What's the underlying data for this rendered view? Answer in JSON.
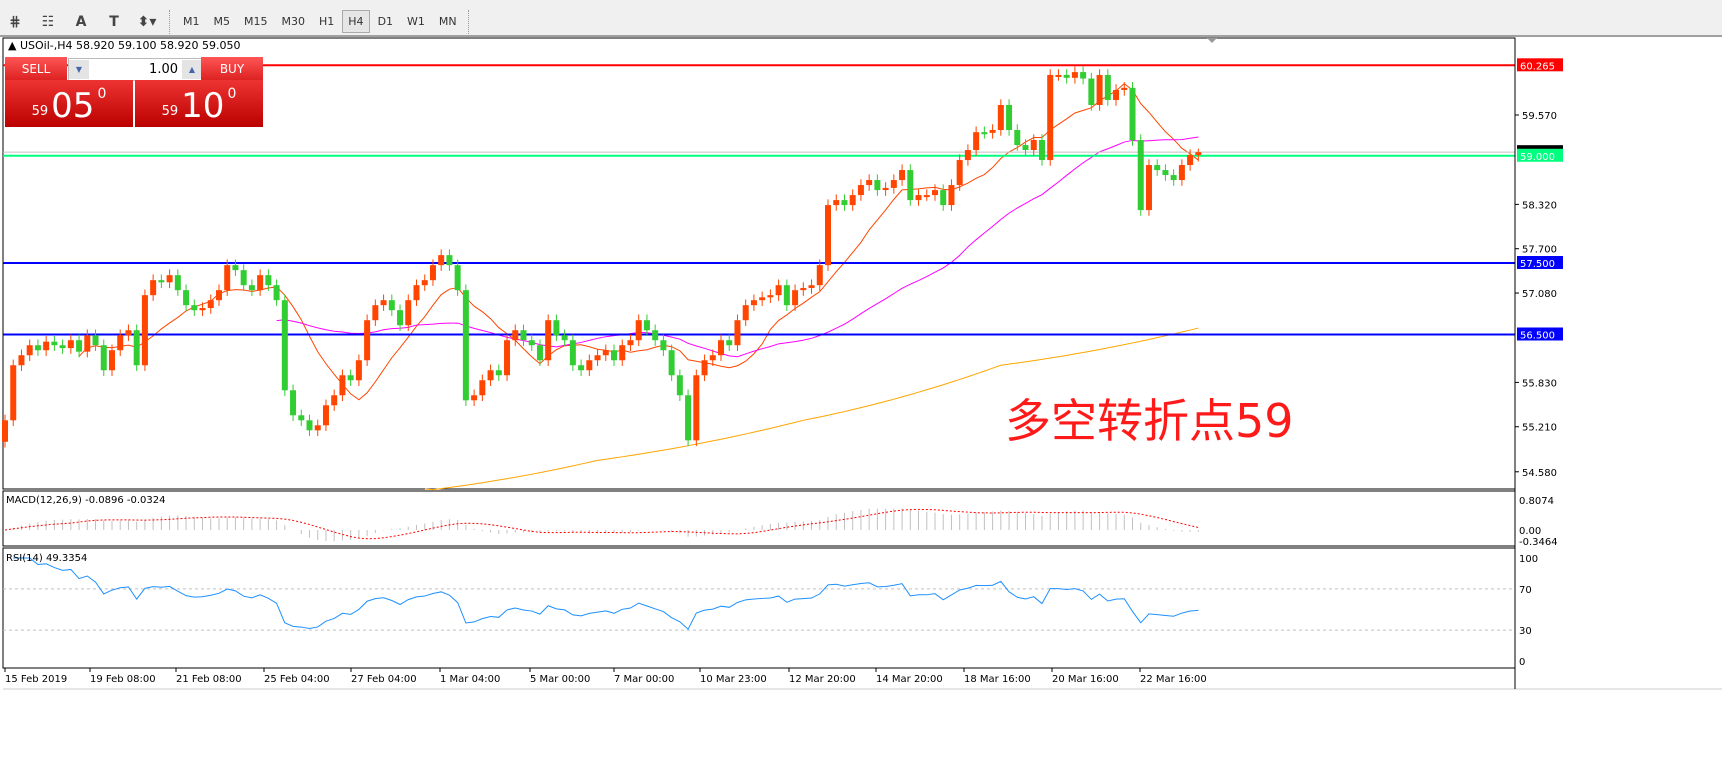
{
  "toolbar": {
    "icons": [
      "fibonacci-expansion-icon",
      "fibonacci-fan-icon",
      "text-icon",
      "text-label-icon",
      "arrows-icon"
    ],
    "icon_glyphs": [
      "⋕",
      "☷",
      "A",
      "T",
      "⬍▾"
    ],
    "timeframes": [
      "M1",
      "M5",
      "M15",
      "M30",
      "H1",
      "H4",
      "D1",
      "W1",
      "MN"
    ],
    "active_timeframe": "H4"
  },
  "chart": {
    "symbol_line": "USOil-,H4  58.920 59.100 58.920 59.050",
    "trade_panel": {
      "sell_label": "SELL",
      "buy_label": "BUY",
      "volume": "1.00",
      "sell_price": {
        "prefix": "59",
        "main": "05",
        "sup": "0"
      },
      "buy_price": {
        "prefix": "59",
        "main": "10",
        "sup": "0"
      }
    },
    "annotation": "多空转折点59",
    "colors": {
      "bull": "#ff4500",
      "bear": "#32cd32",
      "ma_fast": "#ff4500",
      "ma_mid": "#ff00ff",
      "ma_slow": "#ffa500",
      "rsi": "#1e90ff",
      "macd_signal": "#ff0000"
    },
    "macd_label": "MACD(12,26,9) -0.0896 -0.0324",
    "rsi_label": "RSI(14) 49.3354"
  },
  "chart_data": {
    "type": "candlestick",
    "symbol": "USOil-",
    "timeframe": "H4",
    "last_bar": {
      "open": 58.92,
      "high": 59.1,
      "low": 58.92,
      "close": 59.05
    },
    "close": [
      55.3,
      56.07,
      56.21,
      56.35,
      56.28,
      56.4,
      56.35,
      56.31,
      56.42,
      56.26,
      56.49,
      56.35,
      56.0,
      56.28,
      56.49,
      56.56,
      56.07,
      57.05,
      57.26,
      57.23,
      57.33,
      57.12,
      56.91,
      56.84,
      56.87,
      56.98,
      57.12,
      57.47,
      57.4,
      57.19,
      57.12,
      57.33,
      57.19,
      56.98,
      55.72,
      55.37,
      55.3,
      55.16,
      55.23,
      55.51,
      55.65,
      55.93,
      55.86,
      56.14,
      56.7,
      56.91,
      56.98,
      56.84,
      56.63,
      56.98,
      57.19,
      57.26,
      57.47,
      57.61,
      57.47,
      57.12,
      55.58,
      55.65,
      55.86,
      56.0,
      55.93,
      56.42,
      56.56,
      56.42,
      56.35,
      56.14,
      56.7,
      56.49,
      56.42,
      56.07,
      56.0,
      56.14,
      56.21,
      56.28,
      56.14,
      56.35,
      56.42,
      56.7,
      56.56,
      56.42,
      56.28,
      55.93,
      55.65,
      55.02,
      55.93,
      56.14,
      56.21,
      56.42,
      56.35,
      56.7,
      56.91,
      56.98,
      57.02,
      57.05,
      57.19,
      56.91,
      57.12,
      57.15,
      57.19,
      57.47,
      58.31,
      58.38,
      58.31,
      58.45,
      58.59,
      58.66,
      58.52,
      58.55,
      58.66,
      58.8,
      58.38,
      58.45,
      58.45,
      58.52,
      58.31,
      58.59,
      58.94,
      59.08,
      59.33,
      59.32,
      59.36,
      59.71,
      59.36,
      59.15,
      59.08,
      59.22,
      58.94,
      60.13,
      60.13,
      60.09,
      60.17,
      60.08,
      59.71,
      60.13,
      59.78,
      59.92,
      59.95,
      59.22,
      58.24,
      58.87,
      58.8,
      58.73,
      58.66,
      58.87,
      59.01,
      59.05
    ],
    "first_open": 55.0,
    "ma_slow": {
      "indices": [
        52,
        72,
        97,
        121,
        145
      ],
      "values": [
        54.33,
        54.74,
        55.3,
        56.07,
        56.59
      ]
    },
    "price_axis": {
      "ticks": [
        "59.570",
        "58.320",
        "57.700",
        "57.080",
        "55.830",
        "55.210",
        "54.580"
      ],
      "range": [
        54.3,
        60.6
      ]
    },
    "horizontal_lines": [
      {
        "price": "60.265",
        "color": "#ff0000"
      },
      {
        "price": "59.000",
        "color": "#00ff7f"
      },
      {
        "price": "57.500",
        "color": "#0000ff"
      },
      {
        "price": "56.500",
        "color": "#0000ff"
      }
    ],
    "bid_line": {
      "price": "59.050",
      "color": "#c0c0c0"
    },
    "macd_axis": [
      "0.8074",
      "0.00",
      "-0.3464"
    ],
    "rsi_axis": [
      "100",
      "70",
      "30",
      "0"
    ],
    "time_labels": [
      "15 Feb 2019",
      "19 Feb 08:00",
      "21 Feb 08:00",
      "25 Feb 04:00",
      "27 Feb 04:00",
      "1 Mar 04:00",
      "5 Mar 00:00",
      "7 Mar 00:00",
      "10 Mar 23:00",
      "12 Mar 20:00",
      "14 Mar 20:00",
      "18 Mar 16:00",
      "20 Mar 16:00",
      "22 Mar 16:00"
    ]
  }
}
